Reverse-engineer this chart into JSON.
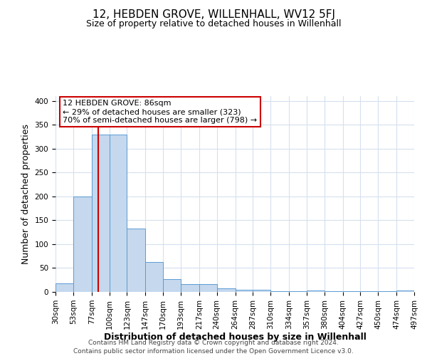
{
  "title": "12, HEBDEN GROVE, WILLENHALL, WV12 5FJ",
  "subtitle": "Size of property relative to detached houses in Willenhall",
  "xlabel": "Distribution of detached houses by size in Willenhall",
  "ylabel": "Number of detached properties",
  "footnote1": "Contains HM Land Registry data © Crown copyright and database right 2024.",
  "footnote2": "Contains public sector information licensed under the Open Government Licence v3.0.",
  "bin_edges": [
    30,
    53,
    77,
    100,
    123,
    147,
    170,
    193,
    217,
    240,
    264,
    287,
    310,
    334,
    357,
    380,
    404,
    427,
    450,
    474,
    497
  ],
  "bin_labels": [
    "30sqm",
    "53sqm",
    "77sqm",
    "100sqm",
    "123sqm",
    "147sqm",
    "170sqm",
    "193sqm",
    "217sqm",
    "240sqm",
    "264sqm",
    "287sqm",
    "310sqm",
    "334sqm",
    "357sqm",
    "380sqm",
    "404sqm",
    "427sqm",
    "450sqm",
    "474sqm",
    "497sqm"
  ],
  "counts": [
    18,
    200,
    330,
    330,
    133,
    62,
    27,
    16,
    16,
    8,
    4,
    4,
    1,
    1,
    3,
    1,
    1,
    1,
    1,
    3
  ],
  "bar_color": "#c5d8ed",
  "bar_edge_color": "#5b9bd5",
  "vline_x": 86,
  "vline_color": "#cc0000",
  "annotation_text": "12 HEBDEN GROVE: 86sqm\n← 29% of detached houses are smaller (323)\n70% of semi-detached houses are larger (798) →",
  "annotation_box_color": "#ffffff",
  "annotation_box_edge": "#cc0000",
  "ylim": [
    0,
    410
  ],
  "background_color": "#ffffff",
  "grid_color": "#d5e0ee",
  "title_fontsize": 11,
  "subtitle_fontsize": 9,
  "axis_label_fontsize": 9,
  "tick_fontsize": 7.5,
  "footnote_fontsize": 6.5,
  "annot_fontsize": 8
}
